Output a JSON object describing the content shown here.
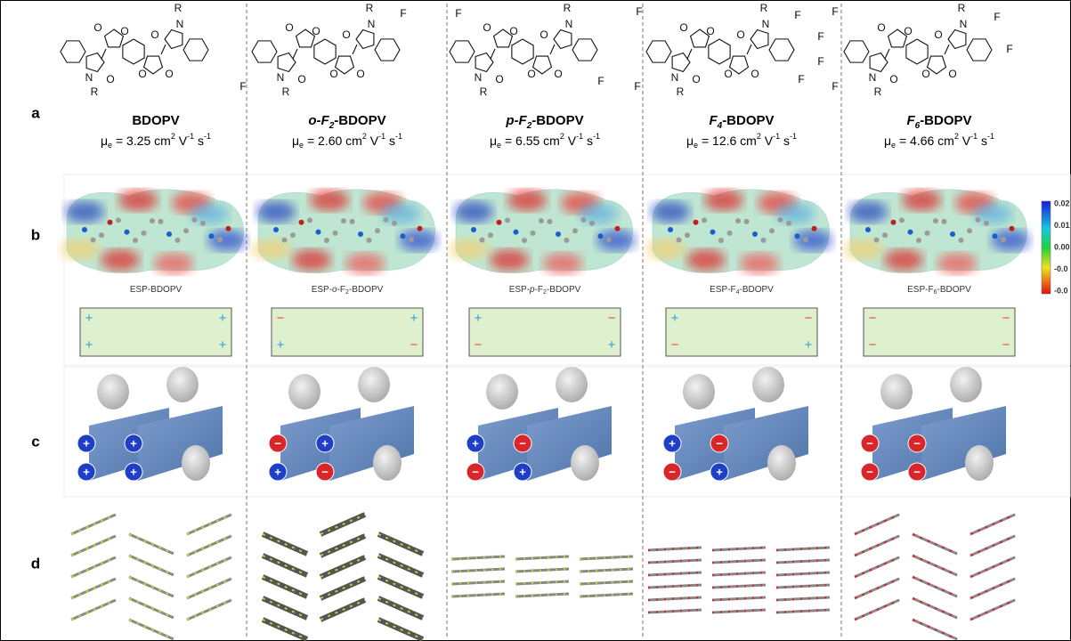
{
  "row_labels": [
    "a",
    "b",
    "c",
    "d"
  ],
  "skeleton": {
    "r": "R",
    "n": "N",
    "o": "O"
  },
  "mobility_format": {
    "symbol": "μ",
    "symbol_sub": "e",
    "equals": " = ",
    "unit1": " cm",
    "unit1_sup": "2",
    "unit2": " V",
    "unit2_sup": "-1",
    "unit3": " s",
    "unit3_sup": "-1"
  },
  "columns": [
    {
      "name": [
        {
          "text": "BDOPV"
        }
      ],
      "mobility": "3.25",
      "fluorines": [],
      "esp_label": [
        {
          "text": "ESP-BDOPV"
        }
      ],
      "signs": [
        "+",
        "+",
        "+",
        "+"
      ]
    },
    {
      "name": [
        {
          "text": "o-F",
          "italic": true
        },
        {
          "text": "2",
          "italic": true,
          "sub": true
        },
        {
          "text": "-BDOPV"
        }
      ],
      "mobility": "2.60",
      "fluorines": [
        "F",
        "F"
      ],
      "esp_label": [
        {
          "text": "ESP-"
        },
        {
          "text": "o",
          "italic": true
        },
        {
          "text": "-F"
        },
        {
          "text": "2",
          "sub": true
        },
        {
          "text": "-BDOPV"
        }
      ],
      "signs": [
        "−",
        "+",
        "+",
        "−"
      ]
    },
    {
      "name": [
        {
          "text": "p-F",
          "italic": true
        },
        {
          "text": "2",
          "italic": true,
          "sub": true
        },
        {
          "text": "-BDOPV"
        }
      ],
      "mobility": "6.55",
      "fluorines": [
        "F",
        "F"
      ],
      "esp_label": [
        {
          "text": "ESP-"
        },
        {
          "text": "p",
          "italic": true
        },
        {
          "text": "-F"
        },
        {
          "text": "2",
          "sub": true
        },
        {
          "text": "-BDOPV"
        }
      ],
      "signs": [
        "+",
        "−",
        "−",
        "+"
      ]
    },
    {
      "name": [
        {
          "text": "F",
          "italic": true
        },
        {
          "text": "4",
          "italic": true,
          "sub": true
        },
        {
          "text": "-BDOPV"
        }
      ],
      "mobility": "12.6",
      "fluorines": [
        "F",
        "F",
        "F",
        "F"
      ],
      "esp_label": [
        {
          "text": "ESP-F"
        },
        {
          "text": "4",
          "sub": true
        },
        {
          "text": "-BDOPV"
        }
      ],
      "signs": [
        "+",
        "−",
        "−",
        "+"
      ]
    },
    {
      "name": [
        {
          "text": "F",
          "italic": true
        },
        {
          "text": "6",
          "italic": true,
          "sub": true
        },
        {
          "text": "-BDOPV"
        }
      ],
      "mobility": "4.66",
      "fluorines": [
        "F",
        "F",
        "F",
        "F",
        "F",
        "F"
      ],
      "esp_label": [
        {
          "text": "ESP-F"
        },
        {
          "text": "6",
          "sub": true
        },
        {
          "text": "-BDOPV"
        }
      ],
      "signs": [
        "−",
        "−",
        "−",
        "−"
      ]
    }
  ],
  "sign_colors": {
    "+": "#2e9fd6",
    "−": "#e0453a"
  },
  "ball_colors": {
    "+": "#1f3fc8",
    "−": "#d8262a"
  },
  "colorbar": {
    "ticks": [
      "0.02",
      "0.01",
      "0.00",
      "-0.0",
      "-0.0"
    ]
  }
}
